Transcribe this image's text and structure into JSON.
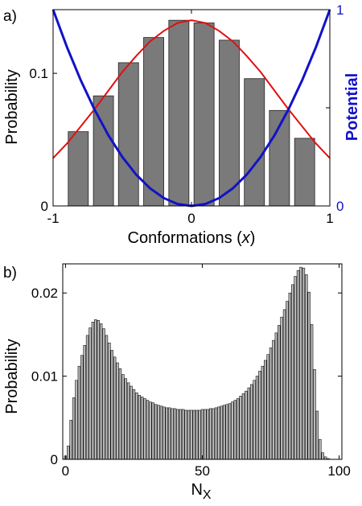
{
  "chart_data": [
    {
      "panel_label": "a)",
      "type": "bar",
      "xlabel": "Conformations (x)",
      "ylabel": "Probability",
      "y2label": "Potential",
      "xlim": [
        -1,
        1
      ],
      "ylim": [
        0,
        0.148
      ],
      "y2lim": [
        0,
        1
      ],
      "xticks": [
        "-1",
        "0",
        "1"
      ],
      "yticks": [
        "0",
        "0.1"
      ],
      "y2ticks": [
        "0",
        "1"
      ],
      "x": [
        -0.818,
        -0.636,
        -0.455,
        -0.273,
        -0.091,
        0.091,
        0.273,
        0.455,
        0.636,
        0.818
      ],
      "values": [
        0.056,
        0.083,
        0.108,
        0.127,
        0.14,
        0.138,
        0.125,
        0.096,
        0.072,
        0.051
      ],
      "series": [
        {
          "type": "line",
          "axis": "left",
          "color": "#e01010",
          "x": [
            -1,
            -0.9,
            -0.8,
            -0.7,
            -0.6,
            -0.5,
            -0.4,
            -0.3,
            -0.2,
            -0.1,
            0,
            0.1,
            0.2,
            0.3,
            0.4,
            0.5,
            0.6,
            0.7,
            0.8,
            0.9,
            1
          ],
          "values": [
            0.036,
            0.047,
            0.06,
            0.073,
            0.087,
            0.101,
            0.113,
            0.124,
            0.132,
            0.138,
            0.14,
            0.138,
            0.132,
            0.124,
            0.113,
            0.101,
            0.087,
            0.073,
            0.06,
            0.047,
            0.036
          ]
        },
        {
          "type": "line",
          "axis": "right",
          "color": "#1212c8",
          "x": [
            -1,
            -0.9,
            -0.8,
            -0.7,
            -0.6,
            -0.5,
            -0.4,
            -0.3,
            -0.2,
            -0.1,
            0,
            0.1,
            0.2,
            0.3,
            0.4,
            0.5,
            0.6,
            0.7,
            0.8,
            0.9,
            1
          ],
          "values": [
            1.0,
            0.81,
            0.64,
            0.49,
            0.36,
            0.25,
            0.16,
            0.09,
            0.04,
            0.01,
            0.0,
            0.01,
            0.04,
            0.09,
            0.16,
            0.25,
            0.36,
            0.49,
            0.64,
            0.81,
            1.0
          ]
        }
      ],
      "colors": {
        "bar": "#7a7a7a",
        "bar_edge": "#222222",
        "potential": "#1212c8",
        "probability_curve": "#e01010"
      },
      "grid": false
    },
    {
      "panel_label": "b)",
      "type": "bar",
      "xlabel": "N",
      "xlabel_sub": "X",
      "ylabel": "Probability",
      "xlim": [
        -1,
        101
      ],
      "ylim": [
        0,
        0.0235
      ],
      "xticks": [
        "0",
        "50",
        "100"
      ],
      "yticks": [
        "0",
        "0.01",
        "0.02"
      ],
      "x_start": 0,
      "x_end": 100,
      "values": [
        0.0004,
        0.0016,
        0.0047,
        0.0074,
        0.0095,
        0.0112,
        0.0125,
        0.0137,
        0.0149,
        0.0158,
        0.0165,
        0.0168,
        0.0167,
        0.0163,
        0.0157,
        0.0149,
        0.014,
        0.0131,
        0.0123,
        0.0116,
        0.0109,
        0.0102,
        0.0097,
        0.0092,
        0.0088,
        0.0084,
        0.008,
        0.0077,
        0.0075,
        0.0073,
        0.0071,
        0.0069,
        0.0068,
        0.0066,
        0.0065,
        0.0064,
        0.0063,
        0.0062,
        0.0062,
        0.0061,
        0.0061,
        0.006,
        0.006,
        0.006,
        0.0059,
        0.0059,
        0.0059,
        0.0059,
        0.0059,
        0.0059,
        0.006,
        0.006,
        0.006,
        0.0061,
        0.0061,
        0.0062,
        0.0063,
        0.0064,
        0.0065,
        0.0066,
        0.0067,
        0.0069,
        0.0071,
        0.0073,
        0.0076,
        0.0079,
        0.0082,
        0.0086,
        0.009,
        0.0095,
        0.01,
        0.0106,
        0.0112,
        0.0119,
        0.0126,
        0.0134,
        0.0143,
        0.0152,
        0.0161,
        0.0171,
        0.018,
        0.019,
        0.02,
        0.021,
        0.022,
        0.0227,
        0.0231,
        0.023,
        0.0222,
        0.0201,
        0.0162,
        0.0108,
        0.0058,
        0.0024,
        0.0008,
        0.0003,
        0.0001,
        0.0,
        0.0,
        0.0,
        0.0
      ],
      "colors": {
        "bar": "#b8b8b8",
        "bar_edge": "#111111"
      },
      "grid": false
    }
  ]
}
